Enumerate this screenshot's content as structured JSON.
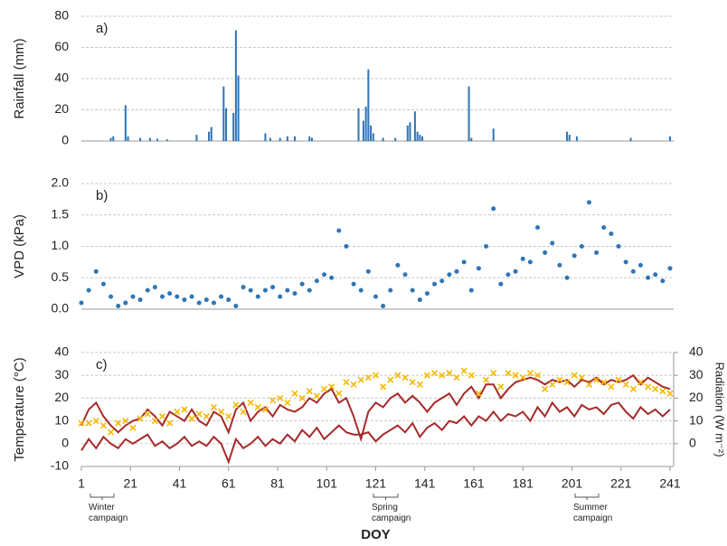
{
  "chart_data": [
    {
      "type": "bar",
      "ylabel": "Rainfall (mm)",
      "annotation": "a)",
      "color": "#2e75b6",
      "x": [
        13,
        14,
        19,
        20,
        25,
        29,
        32,
        36,
        48,
        53,
        54,
        59,
        60,
        63,
        64,
        65,
        76,
        78,
        82,
        85,
        88,
        94,
        95,
        114,
        116,
        117,
        118,
        119,
        120,
        124,
        129,
        134,
        135,
        137,
        138,
        139,
        140,
        159,
        160,
        169,
        199,
        200,
        203,
        225,
        241
      ],
      "values": [
        2,
        3,
        23,
        3,
        2,
        2,
        1.5,
        1,
        4,
        6,
        9,
        35,
        21,
        18,
        71,
        42,
        5,
        2,
        2,
        3,
        3,
        3,
        2,
        21,
        13,
        22,
        46,
        10,
        5,
        2,
        2,
        10,
        12,
        19,
        6,
        4,
        3,
        35,
        2,
        8,
        6,
        4,
        3,
        2,
        3
      ],
      "xlim": [
        1,
        241
      ],
      "ylim": [
        0,
        80
      ],
      "yticks": [
        0,
        20,
        40,
        60,
        80
      ],
      "grid": true
    },
    {
      "type": "scatter",
      "ylabel": "VPD (kPa)",
      "annotation": "b)",
      "color": "#2e75b6",
      "x": [
        1,
        4,
        7,
        10,
        13,
        16,
        19,
        22,
        25,
        28,
        31,
        34,
        37,
        40,
        43,
        46,
        49,
        52,
        55,
        58,
        61,
        64,
        67,
        70,
        73,
        76,
        79,
        82,
        85,
        88,
        91,
        94,
        97,
        100,
        103,
        106,
        109,
        112,
        115,
        118,
        121,
        124,
        127,
        130,
        133,
        136,
        139,
        142,
        145,
        148,
        151,
        154,
        157,
        160,
        163,
        166,
        169,
        172,
        175,
        178,
        181,
        184,
        187,
        190,
        193,
        196,
        199,
        202,
        205,
        208,
        211,
        214,
        217,
        220,
        223,
        226,
        229,
        232,
        235,
        238,
        241
      ],
      "values": [
        0.1,
        0.3,
        0.6,
        0.4,
        0.2,
        0.05,
        0.1,
        0.2,
        0.15,
        0.3,
        0.35,
        0.2,
        0.25,
        0.2,
        0.15,
        0.2,
        0.1,
        0.15,
        0.1,
        0.2,
        0.15,
        0.05,
        0.35,
        0.3,
        0.2,
        0.3,
        0.35,
        0.2,
        0.3,
        0.25,
        0.4,
        0.3,
        0.45,
        0.55,
        0.5,
        1.25,
        1.0,
        0.4,
        0.3,
        0.6,
        0.2,
        0.05,
        0.3,
        0.7,
        0.55,
        0.3,
        0.15,
        0.25,
        0.4,
        0.45,
        0.55,
        0.6,
        0.75,
        0.3,
        0.65,
        1.0,
        1.6,
        0.4,
        0.55,
        0.6,
        0.8,
        0.75,
        1.3,
        0.9,
        1.05,
        0.7,
        0.5,
        0.85,
        1.0,
        1.7,
        0.9,
        1.3,
        1.2,
        1.0,
        0.75,
        0.6,
        0.7,
        0.5,
        0.55,
        0.45,
        0.65
      ],
      "xlim": [
        1,
        241
      ],
      "ylim": [
        0,
        2
      ],
      "yticks": [
        {
          "value": 0,
          "label": "0.0"
        },
        {
          "value": 0.5,
          "label": "0.5"
        },
        {
          "value": 1,
          "label": "1.0"
        },
        {
          "value": 1.5,
          "label": "1.5"
        },
        {
          "value": 2,
          "label": "2.0"
        }
      ],
      "grid": true
    },
    {
      "type": "line",
      "ylabel": "Temperature  (°C)",
      "y2label": "Radiation (W m⁻²)",
      "xlabel": "DOY",
      "annotation": "c)",
      "notes": [
        "Winter campaign",
        "Spring campaign",
        "Summer campaign"
      ],
      "x": [
        1,
        4,
        7,
        10,
        13,
        16,
        19,
        22,
        25,
        28,
        31,
        34,
        37,
        40,
        43,
        46,
        49,
        52,
        55,
        58,
        61,
        64,
        67,
        70,
        73,
        76,
        79,
        82,
        85,
        88,
        91,
        94,
        97,
        100,
        103,
        106,
        109,
        112,
        115,
        118,
        121,
        124,
        127,
        130,
        133,
        136,
        139,
        142,
        145,
        148,
        151,
        154,
        157,
        160,
        163,
        166,
        169,
        172,
        175,
        178,
        181,
        184,
        187,
        190,
        193,
        196,
        199,
        202,
        205,
        208,
        211,
        214,
        217,
        220,
        223,
        226,
        229,
        232,
        235,
        238,
        241
      ],
      "series": [
        {
          "color": "#a52a2a",
          "values": [
            8,
            15,
            18,
            12,
            8,
            5,
            8,
            10,
            11,
            15,
            12,
            8,
            14,
            12,
            10,
            15,
            10,
            8,
            14,
            12,
            5,
            15,
            18,
            10,
            14,
            16,
            12,
            17,
            15,
            14,
            16,
            20,
            18,
            22,
            24,
            18,
            20,
            12,
            2,
            14,
            18,
            16,
            20,
            22,
            18,
            21,
            18,
            14,
            18,
            20,
            22,
            17,
            22,
            25,
            20,
            26,
            26,
            20,
            24,
            27,
            28,
            29,
            28,
            26,
            28,
            27,
            28,
            25,
            28,
            27,
            29,
            26,
            28,
            27,
            28,
            30,
            26,
            29,
            27,
            25,
            24
          ]
        },
        {
          "color": "#a52a2a",
          "values": [
            -3,
            2,
            -2,
            3,
            0,
            -2,
            2,
            0,
            2,
            4,
            -1,
            1,
            -2,
            0,
            3,
            -1,
            1,
            -1,
            3,
            0,
            -8,
            2,
            -2,
            0,
            3,
            -1,
            2,
            0,
            4,
            1,
            6,
            3,
            7,
            2,
            5,
            8,
            5,
            4,
            4,
            5,
            1,
            4,
            6,
            8,
            5,
            9,
            3,
            7,
            9,
            6,
            10,
            9,
            12,
            8,
            12,
            10,
            14,
            10,
            13,
            12,
            14,
            10,
            16,
            12,
            18,
            14,
            16,
            12,
            17,
            15,
            16,
            13,
            17,
            18,
            14,
            11,
            16,
            13,
            15,
            12,
            15
          ]
        },
        {
          "color": "#f5b800",
          "axis": "y2",
          "markers": true,
          "values": [
            9,
            9,
            10,
            8,
            5,
            9,
            10,
            7,
            11,
            13,
            10,
            12,
            9,
            14,
            15,
            11,
            13,
            12,
            16,
            14,
            12,
            17,
            14,
            18,
            16,
            15,
            19,
            20,
            18,
            22,
            20,
            23,
            21,
            24,
            25,
            22,
            27,
            26,
            28,
            29,
            30,
            25,
            28,
            30,
            29,
            27,
            26,
            30,
            31,
            30,
            31,
            29,
            32,
            30,
            22,
            28,
            31,
            25,
            31,
            30,
            29,
            31,
            30,
            24,
            26,
            28,
            27,
            30,
            29,
            26,
            28,
            27,
            25,
            28,
            26,
            24,
            27,
            25,
            24,
            23,
            22
          ]
        }
      ],
      "xlim": [
        1,
        241
      ],
      "xticks": [
        1,
        21,
        41,
        61,
        81,
        101,
        121,
        141,
        161,
        181,
        201,
        221,
        241
      ],
      "ylim": [
        -10,
        40
      ],
      "yticks": [
        -10,
        0,
        10,
        20,
        30,
        40
      ],
      "y2lim": [
        -10,
        40
      ],
      "y2ticks": [
        0,
        10,
        20,
        30,
        40
      ],
      "grid": true
    }
  ]
}
